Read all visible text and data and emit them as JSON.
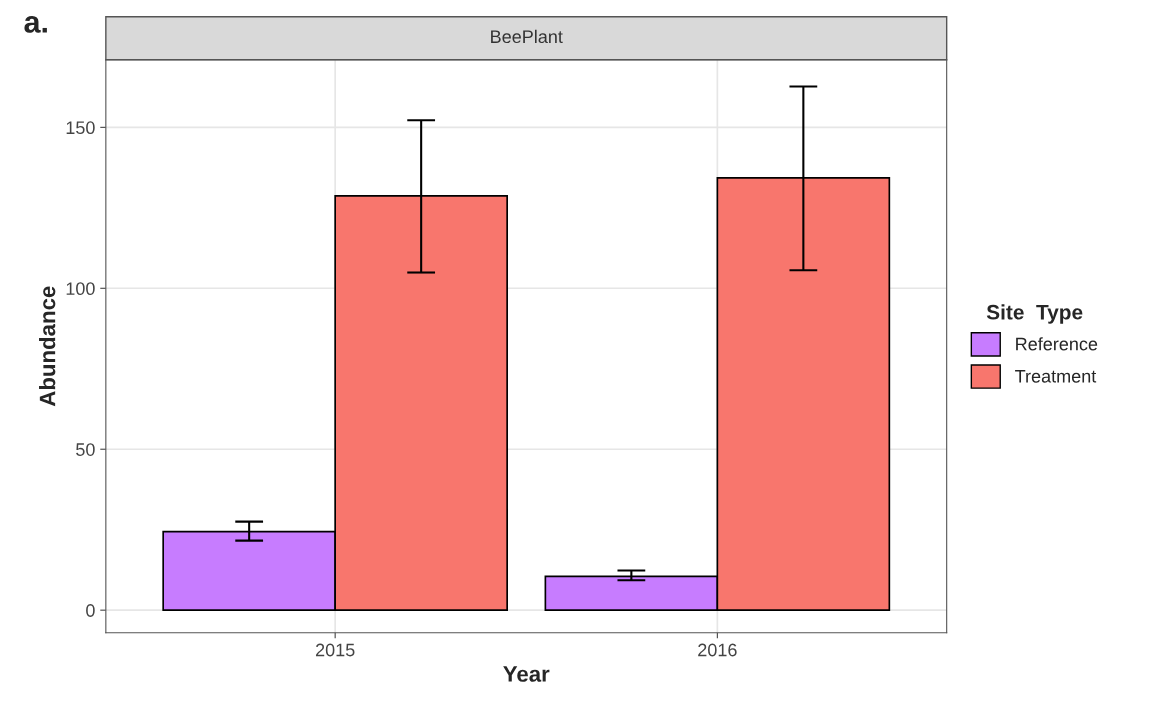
{
  "chart_data": {
    "type": "bar",
    "title": "a.",
    "subtitle": "BeePlant",
    "xlabel": "Year",
    "ylabel": "Abundance",
    "legend_title": "Site  Type",
    "categories": [
      "2015",
      "2016"
    ],
    "series": [
      {
        "name": "Reference",
        "color": "#c77cff",
        "values": [
          24.4,
          10.5
        ],
        "errors": [
          [
            21.6,
            27.5
          ],
          [
            9.3,
            12.3
          ]
        ]
      },
      {
        "name": "Treatment",
        "color": "#f8766d",
        "values": [
          128.7,
          134.3
        ],
        "errors": [
          [
            104.9,
            152.2
          ],
          [
            105.6,
            162.7
          ]
        ]
      }
    ],
    "ylim": [
      -7,
      171
    ],
    "yticks": [
      0,
      50,
      100,
      150
    ],
    "grid": true,
    "legend": "right"
  }
}
